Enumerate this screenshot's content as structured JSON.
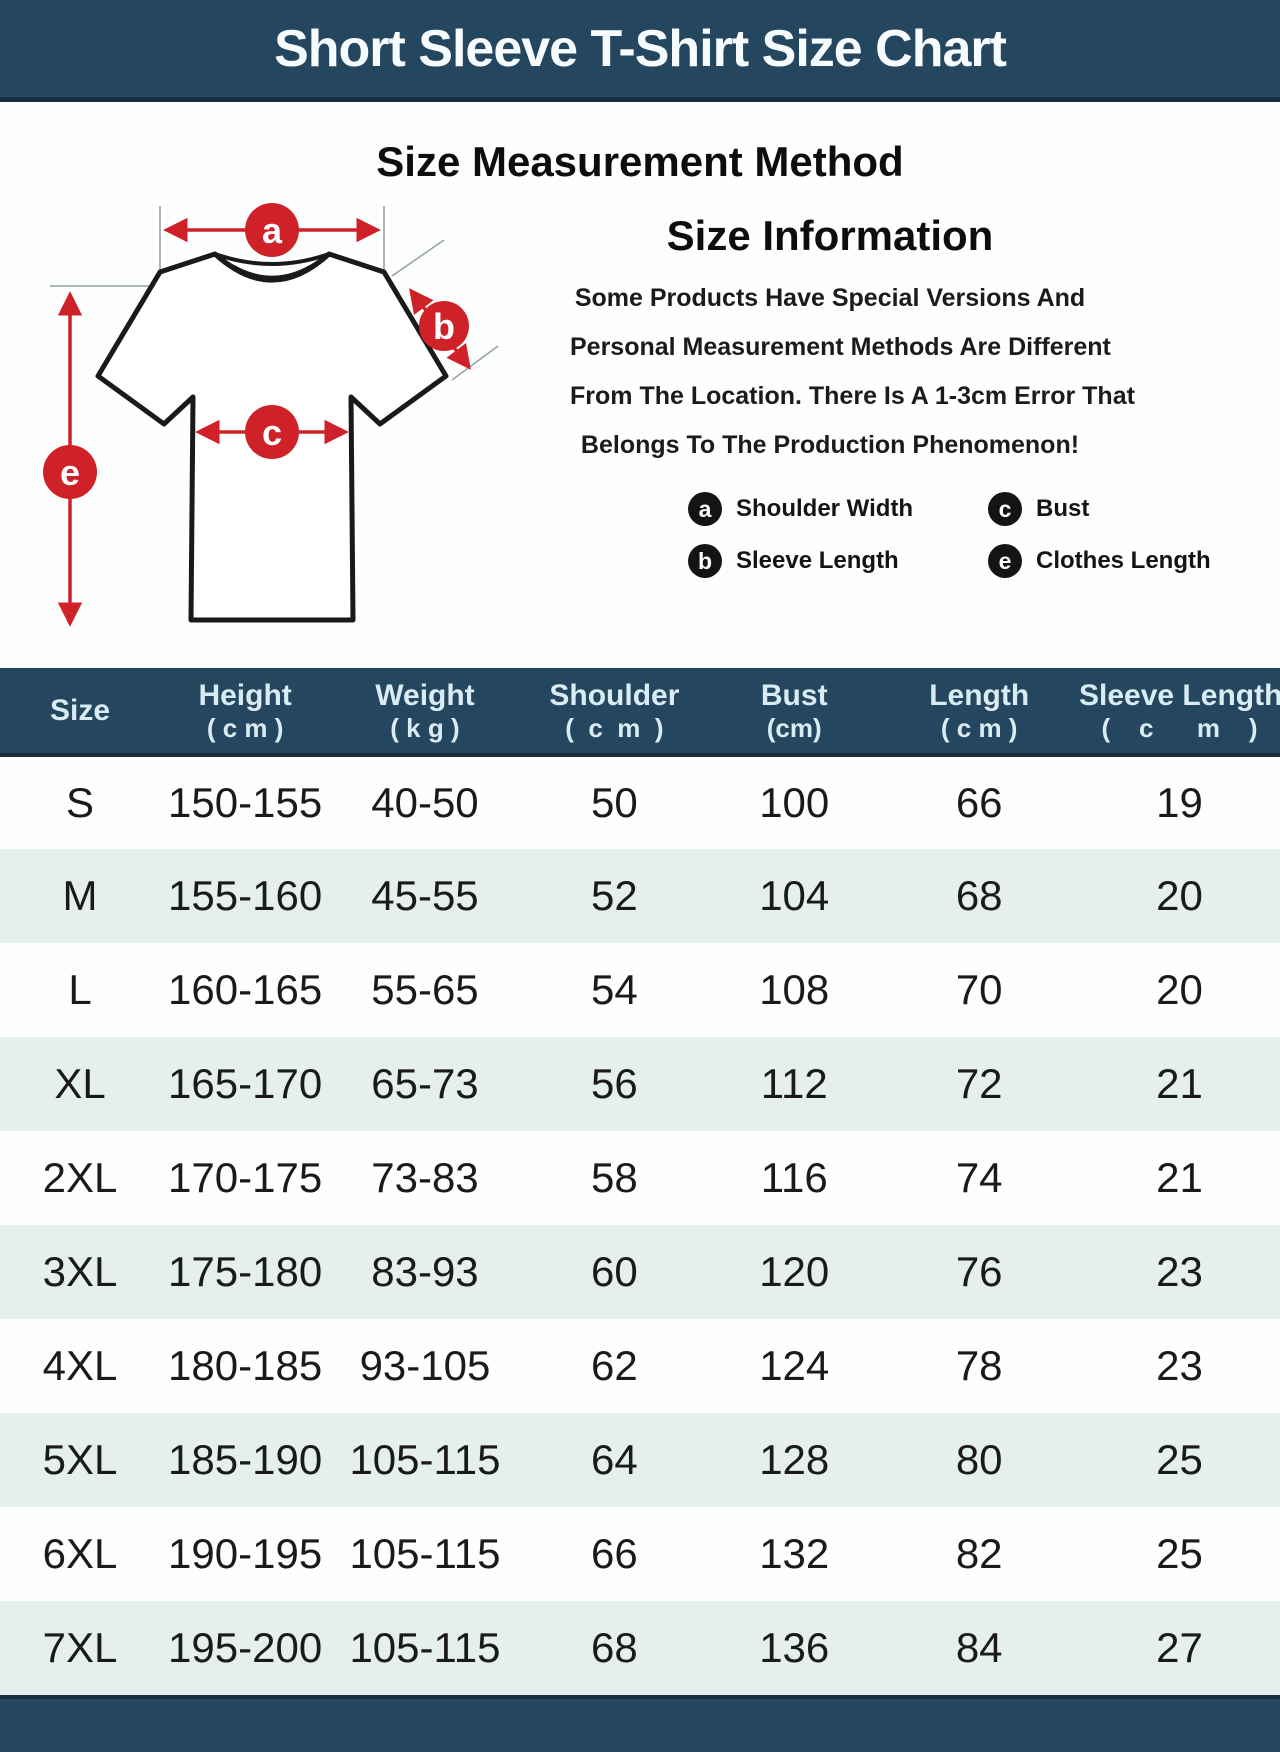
{
  "title": "Short Sleeve T-Shirt Size Chart",
  "method_title": "Size Measurement Method",
  "info": {
    "title": "Size Information",
    "lines": [
      "Some Products Have Special Versions And",
      "Personal Measurement Methods Are Different",
      "From The Location. There Is A 1-3cm Error That",
      "Belongs To The Production Phenomenon!"
    ],
    "legend": [
      {
        "letter": "a",
        "label": "Shoulder Width"
      },
      {
        "letter": "c",
        "label": "Bust"
      },
      {
        "letter": "b",
        "label": "Sleeve Length"
      },
      {
        "letter": "e",
        "label": "Clothes Length"
      }
    ]
  },
  "diagram": {
    "labels": {
      "a": "a",
      "b": "b",
      "c": "c",
      "e": "e"
    }
  },
  "table": {
    "columns": [
      {
        "key": "size",
        "label": "Size",
        "unit": ""
      },
      {
        "key": "height",
        "label": "Height",
        "unit": "( c m )"
      },
      {
        "key": "weight",
        "label": "Weight",
        "unit": "( k g )"
      },
      {
        "key": "shoulder",
        "label": "Shoulder",
        "unit": "(  c  m  )"
      },
      {
        "key": "bust",
        "label": "Bust",
        "unit": "(cm)"
      },
      {
        "key": "length",
        "label": "Length",
        "unit": "( c m )"
      },
      {
        "key": "sleeve",
        "label": "Sleeve Length",
        "unit": "(    c      m    )"
      }
    ],
    "rows": [
      [
        "S",
        "150-155",
        "40-50",
        "50",
        "100",
        "66",
        "19"
      ],
      [
        "M",
        "155-160",
        "45-55",
        "52",
        "104",
        "68",
        "20"
      ],
      [
        "L",
        "160-165",
        "55-65",
        "54",
        "108",
        "70",
        "20"
      ],
      [
        "XL",
        "165-170",
        "65-73",
        "56",
        "112",
        "72",
        "21"
      ],
      [
        "2XL",
        "170-175",
        "73-83",
        "58",
        "116",
        "74",
        "21"
      ],
      [
        "3XL",
        "175-180",
        "83-93",
        "60",
        "120",
        "76",
        "23"
      ],
      [
        "4XL",
        "180-185",
        "93-105",
        "62",
        "124",
        "78",
        "23"
      ],
      [
        "5XL",
        "185-190",
        "105-115",
        "64",
        "128",
        "80",
        "25"
      ],
      [
        "6XL",
        "190-195",
        "105-115",
        "66",
        "132",
        "82",
        "25"
      ],
      [
        "7XL",
        "195-200",
        "105-115",
        "68",
        "136",
        "84",
        "27"
      ]
    ]
  },
  "chart_data": {
    "type": "table",
    "title": "Short Sleeve T-Shirt Size Chart",
    "columns": [
      "Size",
      "Height (cm)",
      "Weight (kg)",
      "Shoulder (cm)",
      "Bust (cm)",
      "Length (cm)",
      "Sleeve Length (cm)"
    ],
    "rows": [
      [
        "S",
        "150-155",
        "40-50",
        50,
        100,
        66,
        19
      ],
      [
        "M",
        "155-160",
        "45-55",
        52,
        104,
        68,
        20
      ],
      [
        "L",
        "160-165",
        "55-65",
        54,
        108,
        70,
        20
      ],
      [
        "XL",
        "165-170",
        "65-73",
        56,
        112,
        72,
        21
      ],
      [
        "2XL",
        "170-175",
        "73-83",
        58,
        116,
        74,
        21
      ],
      [
        "3XL",
        "175-180",
        "83-93",
        60,
        120,
        76,
        23
      ],
      [
        "4XL",
        "180-185",
        "93-105",
        62,
        124,
        78,
        23
      ],
      [
        "5XL",
        "185-190",
        "105-115",
        64,
        128,
        80,
        25
      ],
      [
        "6XL",
        "190-195",
        "105-115",
        66,
        132,
        82,
        25
      ],
      [
        "7XL",
        "195-200",
        "105-115",
        68,
        136,
        84,
        27
      ]
    ]
  },
  "colors": {
    "band_bg": "#25465f",
    "band_edge": "#1a2d3f",
    "header_text": "#d9ecf4",
    "row_alt_bg": "#e4efee",
    "accent_red": "#cf2128",
    "ink": "#161616"
  }
}
